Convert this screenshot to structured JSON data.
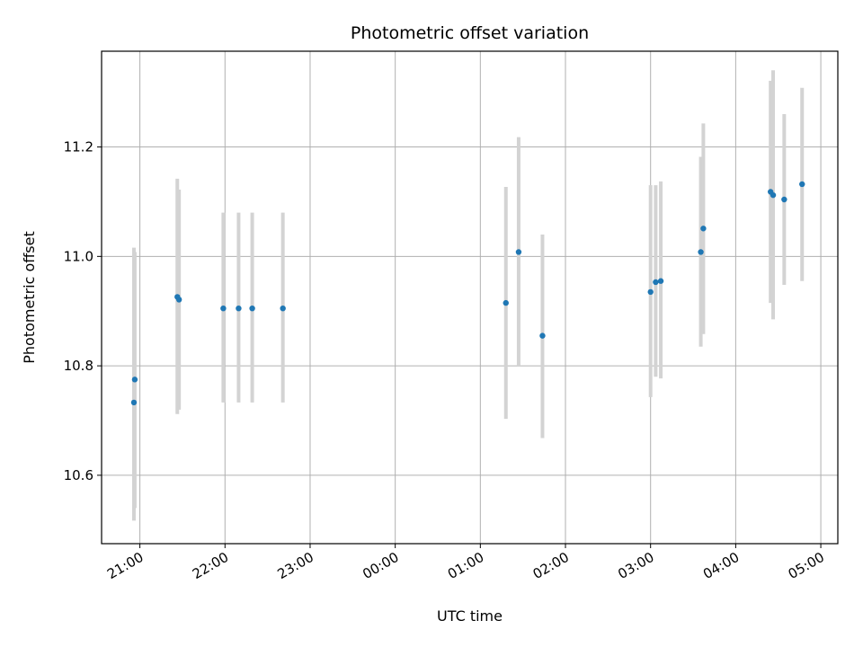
{
  "chart_data": {
    "type": "scatter",
    "title": "Photometric offset variation",
    "xlabel": "UTC time",
    "ylabel": "Photometric offset",
    "x_unit": "hours (UTC clock, continuing past midnight)",
    "xlim": [
      20.55,
      29.2
    ],
    "ylim": [
      10.475,
      11.375
    ],
    "grid": true,
    "x_ticks": [
      {
        "value": 21,
        "label": "21:00"
      },
      {
        "value": 22,
        "label": "22:00"
      },
      {
        "value": 23,
        "label": "23:00"
      },
      {
        "value": 24,
        "label": "00:00"
      },
      {
        "value": 25,
        "label": "01:00"
      },
      {
        "value": 26,
        "label": "02:00"
      },
      {
        "value": 27,
        "label": "03:00"
      },
      {
        "value": 28,
        "label": "04:00"
      },
      {
        "value": 29,
        "label": "05:00"
      }
    ],
    "y_ticks": [
      {
        "value": 10.6,
        "label": "10.6"
      },
      {
        "value": 10.8,
        "label": "10.8"
      },
      {
        "value": 11.0,
        "label": "11.0"
      },
      {
        "value": 11.2,
        "label": "11.2"
      }
    ],
    "colors": {
      "point": "#1f77b4",
      "errorbar": "#d3d3d3",
      "grid": "#b0b0b0"
    },
    "points": [
      {
        "x": 20.93,
        "y": 10.733,
        "lo": 10.517,
        "hi": 11.016
      },
      {
        "x": 20.94,
        "y": 10.775,
        "lo": 10.54,
        "hi": 11.008
      },
      {
        "x": 21.44,
        "y": 10.926,
        "lo": 10.712,
        "hi": 11.142
      },
      {
        "x": 21.46,
        "y": 10.921,
        "lo": 10.72,
        "hi": 11.122
      },
      {
        "x": 21.98,
        "y": 10.905,
        "lo": 10.733,
        "hi": 11.08
      },
      {
        "x": 22.16,
        "y": 10.905,
        "lo": 10.733,
        "hi": 11.08
      },
      {
        "x": 22.32,
        "y": 10.905,
        "lo": 10.733,
        "hi": 11.08
      },
      {
        "x": 22.68,
        "y": 10.905,
        "lo": 10.733,
        "hi": 11.08
      },
      {
        "x": 25.3,
        "y": 10.915,
        "lo": 10.703,
        "hi": 11.127
      },
      {
        "x": 25.45,
        "y": 11.008,
        "lo": 10.8,
        "hi": 11.218
      },
      {
        "x": 25.73,
        "y": 10.855,
        "lo": 10.668,
        "hi": 11.04
      },
      {
        "x": 27.0,
        "y": 10.935,
        "lo": 10.743,
        "hi": 11.13
      },
      {
        "x": 27.06,
        "y": 10.953,
        "lo": 10.78,
        "hi": 11.13
      },
      {
        "x": 27.12,
        "y": 10.955,
        "lo": 10.777,
        "hi": 11.137
      },
      {
        "x": 27.59,
        "y": 11.008,
        "lo": 10.835,
        "hi": 11.182
      },
      {
        "x": 27.62,
        "y": 11.051,
        "lo": 10.858,
        "hi": 11.243
      },
      {
        "x": 28.41,
        "y": 11.118,
        "lo": 10.915,
        "hi": 11.321
      },
      {
        "x": 28.44,
        "y": 11.112,
        "lo": 10.885,
        "hi": 11.34
      },
      {
        "x": 28.57,
        "y": 11.104,
        "lo": 10.948,
        "hi": 11.26
      },
      {
        "x": 28.78,
        "y": 11.132,
        "lo": 10.955,
        "hi": 11.308
      }
    ]
  }
}
